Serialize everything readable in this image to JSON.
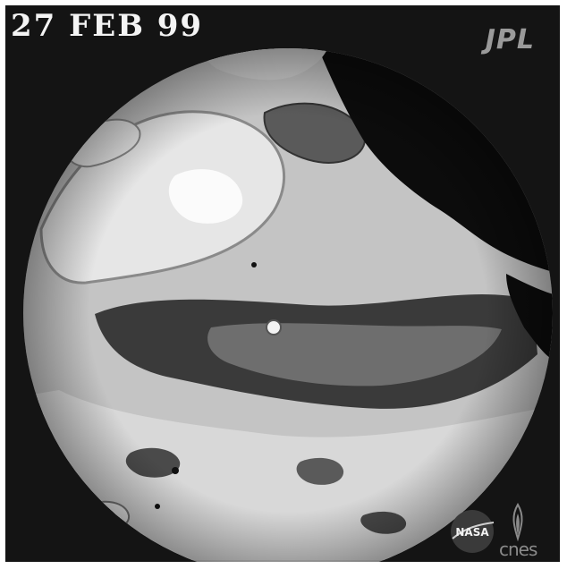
{
  "image": {
    "date_stamp": "27 FEB 99",
    "jpl_logo_text": "JPL",
    "nasa_logo_text": "NASA",
    "cnes_logo_text": "cnes",
    "colors": {
      "background": "#141414",
      "ocean_base": "#c4c4c4",
      "land": "#0c0c0c",
      "high_anomaly": "#f0f0f0",
      "low_anomaly": "#4a4a4a",
      "very_low_anomaly": "#2a2a2a"
    }
  }
}
